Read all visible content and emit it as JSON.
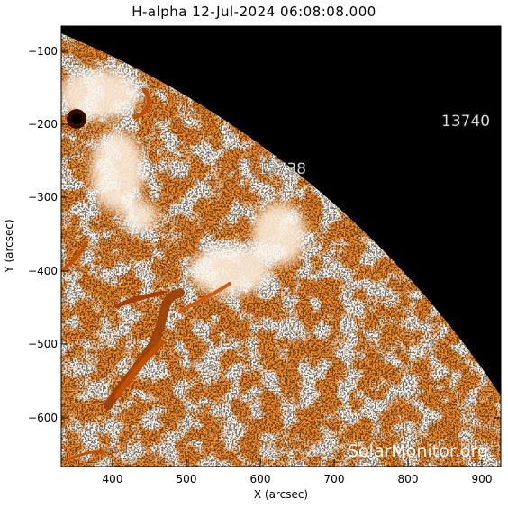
{
  "title": "H-alpha 12-Jul-2024 06:08:08.000",
  "x_axis": {
    "label": "X (arcsec)",
    "ticks": [
      "400",
      "500",
      "600",
      "700",
      "800",
      "900"
    ]
  },
  "y_axis": {
    "label": "Y (arcsec)",
    "ticks": [
      "−100",
      "−200",
      "−300",
      "−400",
      "−500",
      "−600"
    ]
  },
  "active_regions": [
    {
      "label": "13738"
    },
    {
      "label": "13740"
    }
  ],
  "watermark": "SolarMonitor.org",
  "colors": {
    "disk": "#f08a2a",
    "bright": "#ffe9cf",
    "dark": "#7a2a00",
    "space": "#000000"
  }
}
